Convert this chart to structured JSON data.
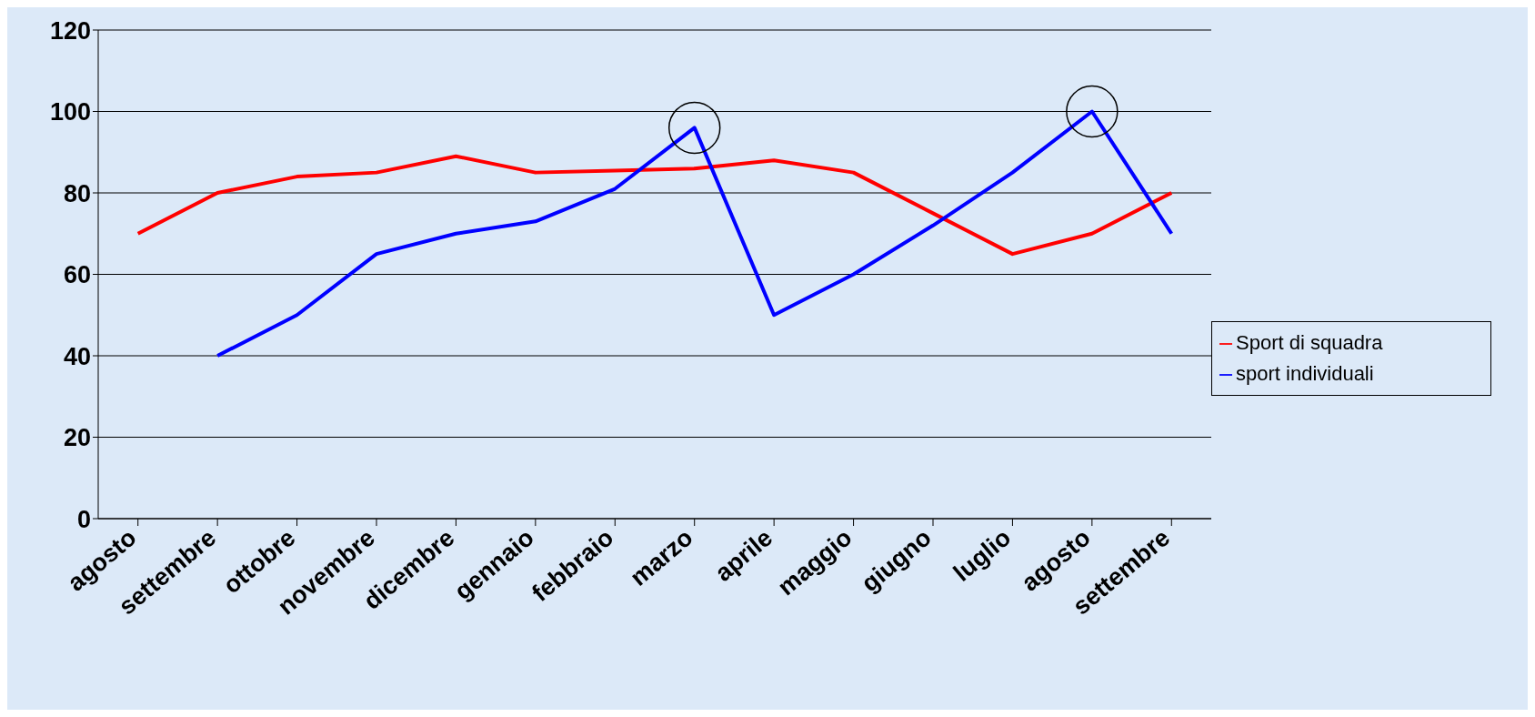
{
  "chart_data": {
    "type": "line",
    "categories": [
      "agosto",
      "settembre",
      "ottobre",
      "novembre",
      "dicembre",
      "gennaio",
      "febbraio",
      "marzo",
      "aprile",
      "maggio",
      "giugno",
      "luglio",
      "agosto",
      "settembre"
    ],
    "series": [
      {
        "name": "Sport di squadra",
        "color": "#ff0000",
        "values": [
          70,
          80,
          84,
          85,
          89,
          85,
          85.5,
          86,
          88,
          85,
          75,
          65,
          70,
          80
        ]
      },
      {
        "name": "sport individuali",
        "color": "#0000ff",
        "values": [
          null,
          40,
          50,
          65,
          70,
          73,
          81,
          96,
          50,
          60,
          72,
          85,
          100,
          70
        ]
      }
    ],
    "ylim": [
      0,
      120
    ],
    "yticks": [
      0,
      20,
      40,
      60,
      80,
      100,
      120
    ],
    "grid": "y",
    "legend": "right",
    "marker": "none",
    "line_style": "solid"
  }
}
